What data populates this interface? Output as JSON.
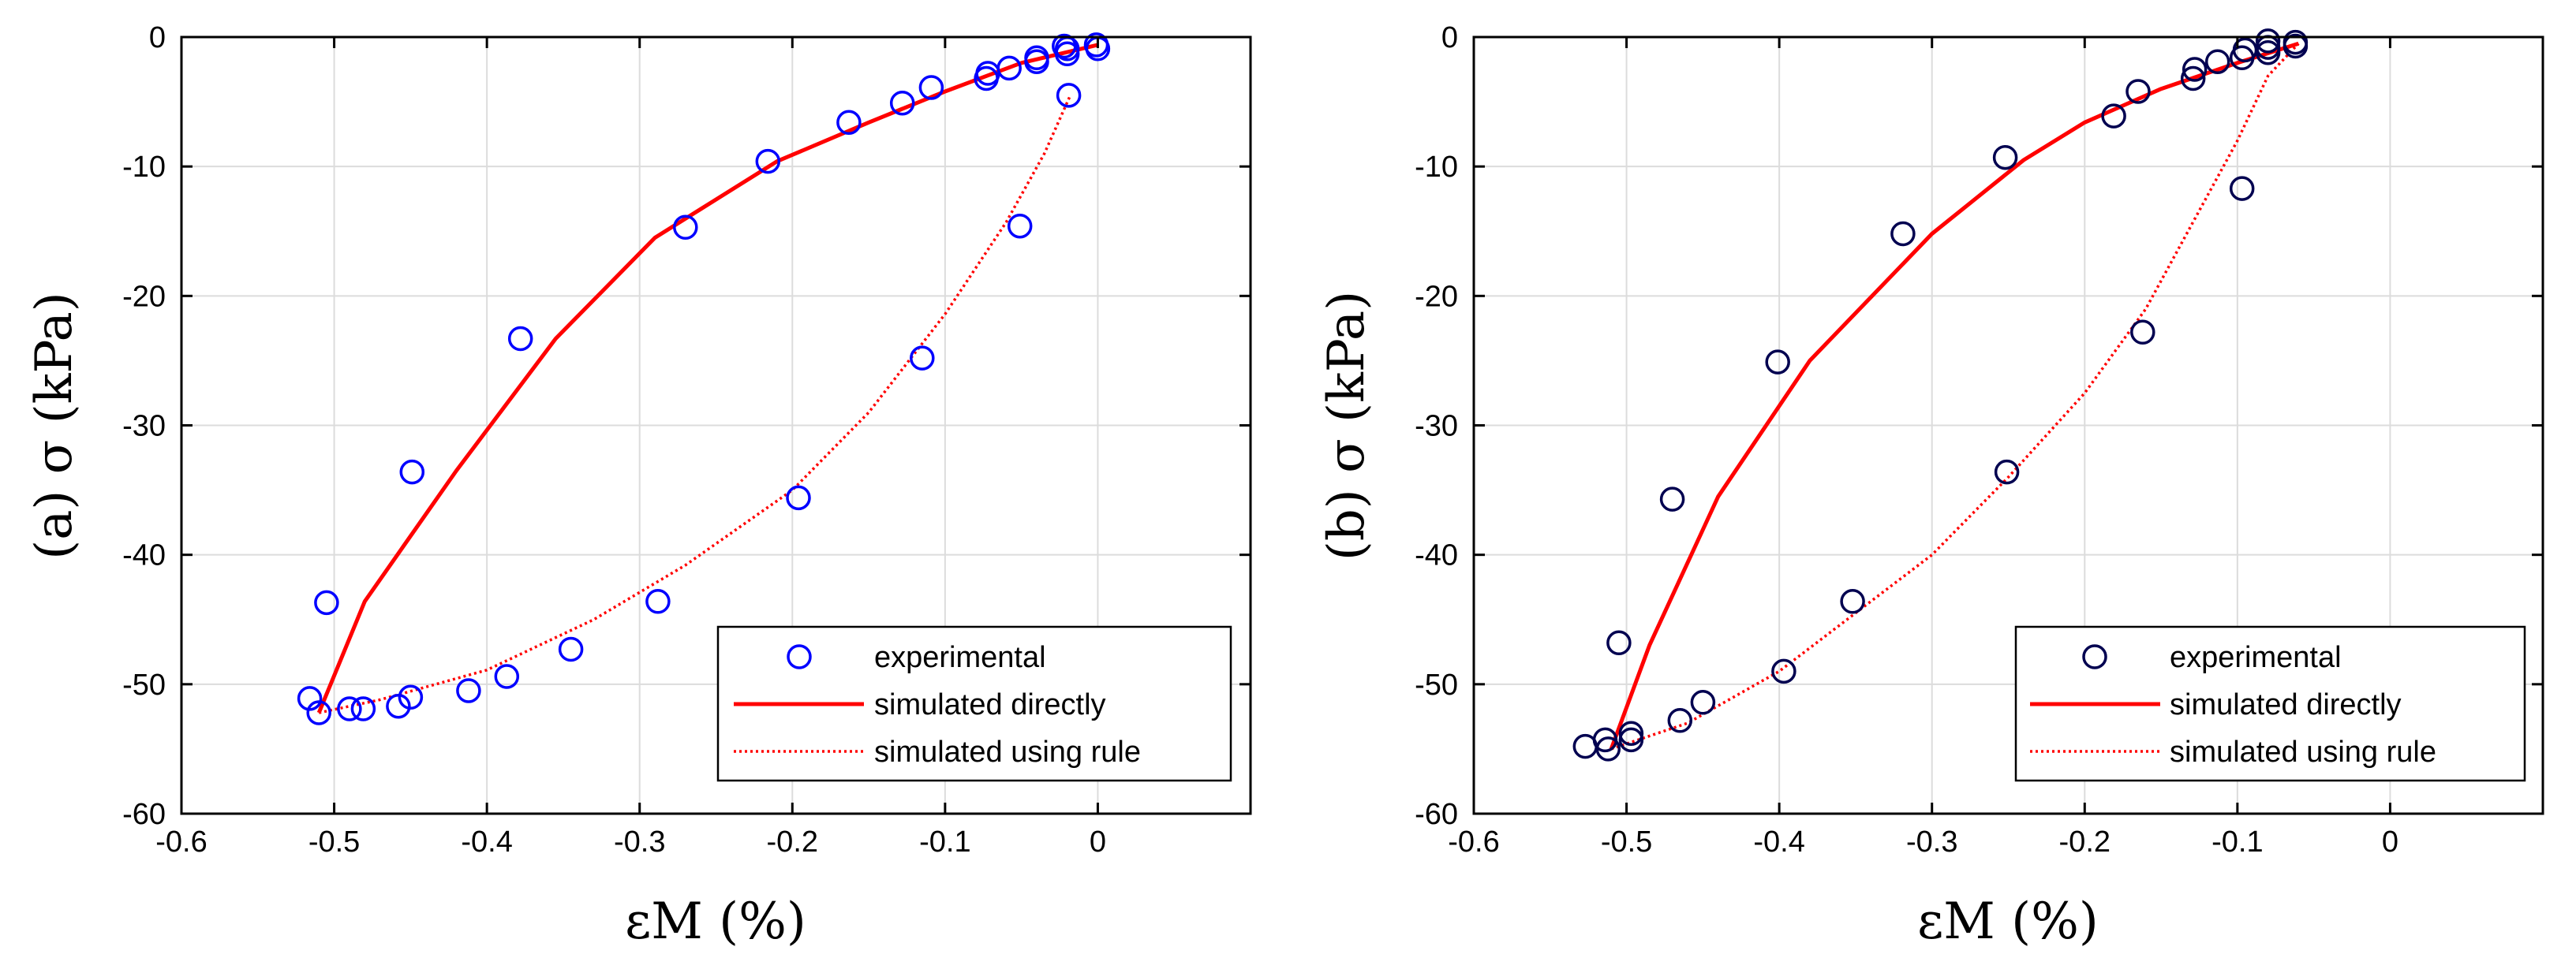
{
  "chart_data": [
    {
      "type": "scatter",
      "panel_label": "(a)",
      "ylabel": "σ (kPa)",
      "xlabel": "εM (%)",
      "xlim": [
        -0.6,
        0.1
      ],
      "ylim": [
        -60,
        0
      ],
      "xticks": [
        -0.6,
        -0.5,
        -0.4,
        -0.3,
        -0.2,
        -0.1,
        0
      ],
      "xtick_labels": [
        "-0.6",
        "-0.5",
        "-0.4",
        "-0.3",
        "-0.2",
        "-0.1",
        "0"
      ],
      "yticks": [
        0,
        -10,
        -20,
        -30,
        -40,
        -50,
        -60
      ],
      "ytick_labels": [
        "0",
        "-10",
        "-20",
        "-30",
        "-40",
        "-50",
        "-60"
      ],
      "grid": true,
      "legend_position": "bottom-right",
      "series": [
        {
          "name": "experimental",
          "style": "markers",
          "color": "#0000ff",
          "points": [
            [
              -0.001,
              -0.6
            ],
            [
              0.0,
              -0.9
            ],
            [
              -0.02,
              -0.9
            ],
            [
              -0.02,
              -1.3
            ],
            [
              -0.022,
              -0.7
            ],
            [
              -0.04,
              -1.6
            ],
            [
              -0.04,
              -1.9
            ],
            [
              -0.058,
              -2.4
            ],
            [
              -0.072,
              -2.8
            ],
            [
              -0.073,
              -3.2
            ],
            [
              -0.109,
              -3.9
            ],
            [
              -0.128,
              -5.1
            ],
            [
              -0.163,
              -6.6
            ],
            [
              -0.216,
              -9.6
            ],
            [
              -0.27,
              -14.7
            ],
            [
              -0.378,
              -23.3
            ],
            [
              -0.449,
              -33.6
            ],
            [
              -0.505,
              -43.7
            ],
            [
              -0.516,
              -51.1
            ],
            [
              -0.51,
              -52.2
            ],
            [
              -0.49,
              -51.9
            ],
            [
              -0.481,
              -51.9
            ],
            [
              -0.458,
              -51.7
            ],
            [
              -0.45,
              -51.0
            ],
            [
              -0.412,
              -50.5
            ],
            [
              -0.387,
              -49.4
            ],
            [
              -0.345,
              -47.3
            ],
            [
              -0.288,
              -43.6
            ],
            [
              -0.196,
              -35.6
            ],
            [
              -0.115,
              -24.8
            ],
            [
              -0.051,
              -14.6
            ],
            [
              -0.019,
              -4.5
            ]
          ]
        },
        {
          "name": "simulated directly",
          "style": "solid",
          "color": "#ff0000",
          "points": [
            [
              -0.51,
              -52.2
            ],
            [
              -0.48,
              -43.6
            ],
            [
              -0.42,
              -33.5
            ],
            [
              -0.355,
              -23.3
            ],
            [
              -0.29,
              -15.5
            ],
            [
              -0.21,
              -9.6
            ],
            [
              -0.15,
              -6.6
            ],
            [
              -0.1,
              -4.2
            ],
            [
              -0.05,
              -2.0
            ],
            [
              0.0,
              -0.6
            ]
          ]
        },
        {
          "name": "simulated using rule",
          "style": "dotted",
          "color": "#ff0000",
          "points": [
            [
              -0.51,
              -52.2
            ],
            [
              -0.47,
              -51.2
            ],
            [
              -0.4,
              -48.9
            ],
            [
              -0.33,
              -45.0
            ],
            [
              -0.27,
              -40.8
            ],
            [
              -0.2,
              -35.0
            ],
            [
              -0.15,
              -29.0
            ],
            [
              -0.1,
              -21.4
            ],
            [
              -0.06,
              -14.3
            ],
            [
              -0.035,
              -9.0
            ],
            [
              -0.018,
              -4.5
            ]
          ]
        }
      ],
      "legend": [
        "experimental",
        "simulated directly",
        "simulated using rule"
      ]
    },
    {
      "type": "scatter",
      "panel_label": "(b)",
      "ylabel": "σ (kPa)",
      "xlabel": "εM (%)",
      "xlim": [
        -0.6,
        0.1
      ],
      "ylim": [
        -60,
        0
      ],
      "xticks": [
        -0.6,
        -0.5,
        -0.4,
        -0.3,
        -0.2,
        -0.1,
        0
      ],
      "xtick_labels": [
        "-0.6",
        "-0.5",
        "-0.4",
        "-0.3",
        "-0.2",
        "-0.1",
        "0"
      ],
      "yticks": [
        0,
        -10,
        -20,
        -30,
        -40,
        -50,
        -60
      ],
      "ytick_labels": [
        "0",
        "-10",
        "-20",
        "-30",
        "-40",
        "-50",
        "-60"
      ],
      "grid": true,
      "legend_position": "bottom-right",
      "series": [
        {
          "name": "experimental",
          "style": "markers",
          "color": "#000050",
          "points": [
            [
              -0.062,
              -0.4
            ],
            [
              -0.062,
              -0.7
            ],
            [
              -0.08,
              -0.3
            ],
            [
              -0.08,
              -0.8
            ],
            [
              -0.08,
              -1.2
            ],
            [
              -0.095,
              -1.0
            ],
            [
              -0.097,
              -1.6
            ],
            [
              -0.113,
              -1.9
            ],
            [
              -0.128,
              -2.5
            ],
            [
              -0.129,
              -3.2
            ],
            [
              -0.165,
              -4.2
            ],
            [
              -0.181,
              -6.1
            ],
            [
              -0.252,
              -9.3
            ],
            [
              -0.319,
              -15.2
            ],
            [
              -0.401,
              -25.1
            ],
            [
              -0.47,
              -35.7
            ],
            [
              -0.505,
              -46.8
            ],
            [
              -0.527,
              -54.8
            ],
            [
              -0.514,
              -54.3
            ],
            [
              -0.512,
              -55.0
            ],
            [
              -0.497,
              -53.8
            ],
            [
              -0.497,
              -54.3
            ],
            [
              -0.465,
              -52.8
            ],
            [
              -0.45,
              -51.4
            ],
            [
              -0.397,
              -49.0
            ],
            [
              -0.352,
              -43.6
            ],
            [
              -0.251,
              -33.6
            ],
            [
              -0.162,
              -22.8
            ],
            [
              -0.097,
              -11.7
            ]
          ]
        },
        {
          "name": "simulated directly",
          "style": "solid",
          "color": "#ff0000",
          "points": [
            [
              -0.51,
              -55.0
            ],
            [
              -0.485,
              -47.0
            ],
            [
              -0.44,
              -35.5
            ],
            [
              -0.38,
              -25.0
            ],
            [
              -0.3,
              -15.2
            ],
            [
              -0.24,
              -9.5
            ],
            [
              -0.2,
              -6.6
            ],
            [
              -0.15,
              -4.0
            ],
            [
              -0.1,
              -2.0
            ],
            [
              -0.06,
              -0.5
            ]
          ]
        },
        {
          "name": "simulated using rule",
          "style": "dotted",
          "color": "#ff0000",
          "points": [
            [
              -0.51,
              -55.0
            ],
            [
              -0.46,
              -53.0
            ],
            [
              -0.4,
              -49.0
            ],
            [
              -0.35,
              -44.5
            ],
            [
              -0.3,
              -40.0
            ],
            [
              -0.25,
              -34.0
            ],
            [
              -0.2,
              -27.5
            ],
            [
              -0.16,
              -21.0
            ],
            [
              -0.13,
              -14.5
            ],
            [
              -0.1,
              -8.0
            ],
            [
              -0.08,
              -3.0
            ],
            [
              -0.06,
              -0.5
            ]
          ]
        }
      ],
      "legend": [
        "experimental",
        "simulated directly",
        "simulated using rule"
      ]
    }
  ]
}
